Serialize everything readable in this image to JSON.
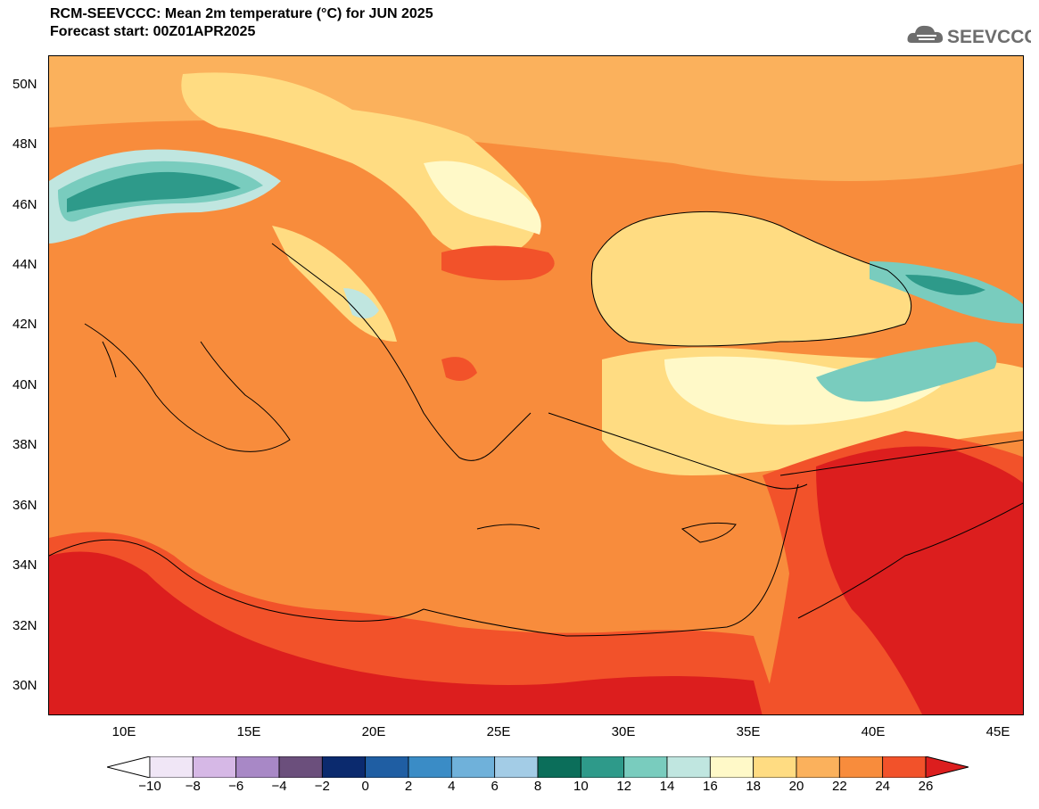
{
  "header": {
    "title_line1": "RCM-SEEVCCC: Mean 2m temperature (°C) for JUN 2025",
    "title_line2": "Forecast start: 00Z01APR2025"
  },
  "logo": {
    "text": "SEEVCCC",
    "icon": "cloud-logo-icon",
    "color": "#6d6d6d"
  },
  "map": {
    "lat_labels": [
      "50N",
      "48N",
      "46N",
      "44N",
      "42N",
      "40N",
      "38N",
      "36N",
      "34N",
      "32N",
      "30N"
    ],
    "lon_labels": [
      "10E",
      "15E",
      "20E",
      "25E",
      "30E",
      "35E",
      "40E",
      "45E"
    ],
    "lat_range": [
      29,
      51.2
    ],
    "lon_range": [
      6.5,
      45.6
    ]
  },
  "colorbar": {
    "labels": [
      "−10",
      "−8",
      "−6",
      "−4",
      "−2",
      "0",
      "2",
      "4",
      "6",
      "8",
      "10",
      "12",
      "14",
      "16",
      "18",
      "20",
      "22",
      "24",
      "26"
    ],
    "colors": [
      "#f0e6f6",
      "#d6b8e6",
      "#a888c6",
      "#6b4f7c",
      "#0b2a6e",
      "#1f5ea3",
      "#3a8cc6",
      "#6fb1da",
      "#a3cce6",
      "#0b6e5a",
      "#2e9a8a",
      "#79ccbe",
      "#c0e6e0",
      "#fff9c8",
      "#ffdc82",
      "#fbb15c",
      "#f88c3c",
      "#f2522a"
    ],
    "under_color": "#ffffff",
    "over_color": "#dc1e1e"
  }
}
